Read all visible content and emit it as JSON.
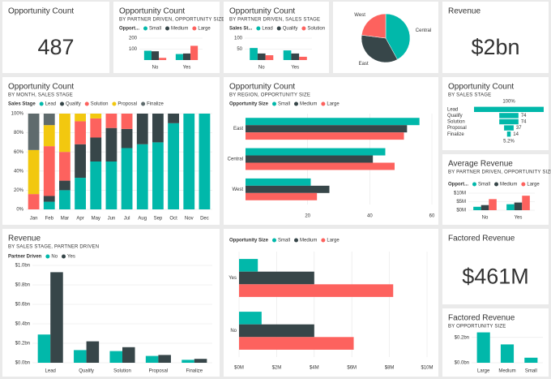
{
  "chart_data": [
    {
      "type": "card",
      "title": "Opportunity Count",
      "value": 487
    },
    {
      "type": "bar",
      "title": "Opportunity Count",
      "subtitle": "BY PARTNER DRIVEN, OPPORTUNITY SIZE",
      "legend_title": "Opport...",
      "categories": [
        "No",
        "Yes"
      ],
      "series": [
        {
          "name": "Small",
          "color": "#01b8aa",
          "values": [
            85,
            55
          ]
        },
        {
          "name": "Medium",
          "color": "#374649",
          "values": [
            80,
            60
          ]
        },
        {
          "name": "Large",
          "color": "#fd625e",
          "values": [
            20,
            130
          ]
        }
      ],
      "ylim": [
        0,
        200
      ],
      "yticks": [
        100,
        200
      ],
      "grid": true
    },
    {
      "type": "bar",
      "title": "Opportunity Count",
      "subtitle": "BY PARTNER DRIVEN, SALES STAGE",
      "legend_title": "Sales St...",
      "categories": [
        "No",
        "Yes"
      ],
      "series": [
        {
          "name": "Lead",
          "color": "#01b8aa",
          "values": [
            55,
            44
          ]
        },
        {
          "name": "Qualify",
          "color": "#374649",
          "values": [
            30,
            30
          ]
        },
        {
          "name": "Solution",
          "color": "#fd625e",
          "values": [
            22,
            15
          ]
        }
      ],
      "ylim": [
        0,
        100
      ],
      "yticks": [
        50,
        100
      ],
      "grid": true
    },
    {
      "type": "pie",
      "categories": [
        "Central",
        "East",
        "West"
      ],
      "values": [
        42,
        35,
        23
      ],
      "colors": [
        "#01b8aa",
        "#374649",
        "#fd625e"
      ]
    },
    {
      "type": "card",
      "title": "Revenue",
      "value": 2000000000,
      "value_label": "$2bn"
    },
    {
      "type": "stacked_bar",
      "title": "Opportunity Count",
      "subtitle": "BY MONTH, SALES STAGE",
      "legend_title": "Sales Stage",
      "categories": [
        "Jan",
        "Feb",
        "Mar",
        "Apr",
        "May",
        "Jun",
        "Jul",
        "Aug",
        "Sep",
        "Oct",
        "Nov",
        "Dec"
      ],
      "series": [
        {
          "name": "Lead",
          "color": "#01b8aa",
          "values": [
            0,
            8,
            20,
            33,
            50,
            50,
            64,
            68,
            70,
            90,
            100,
            100
          ]
        },
        {
          "name": "Qualify",
          "color": "#374649",
          "values": [
            0,
            6,
            10,
            35,
            25,
            35,
            20,
            32,
            30,
            10,
            0,
            0
          ]
        },
        {
          "name": "Solution",
          "color": "#fd625e",
          "values": [
            16,
            52,
            30,
            24,
            20,
            15,
            16,
            0,
            0,
            0,
            0,
            0
          ]
        },
        {
          "name": "Proposal",
          "color": "#f2c80f",
          "values": [
            46,
            22,
            40,
            8,
            5,
            0,
            0,
            0,
            0,
            0,
            0,
            0
          ]
        },
        {
          "name": "Finalize",
          "color": "#5f6b6d",
          "values": [
            38,
            12,
            0,
            0,
            0,
            0,
            0,
            0,
            0,
            0,
            0,
            0
          ]
        }
      ],
      "ylim": [
        0,
        100
      ],
      "yticks": [
        {
          "value": 0,
          "label": "0%"
        },
        {
          "value": 20,
          "label": "20%"
        },
        {
          "value": 40,
          "label": "40%"
        },
        {
          "value": 60,
          "label": "60%"
        },
        {
          "value": 80,
          "label": "80%"
        },
        {
          "value": 100,
          "label": "100%"
        }
      ],
      "grid": true
    },
    {
      "type": "hbar",
      "title": "Opportunity Count",
      "subtitle": "BY REGION, OPPORTUNITY SIZE",
      "legend_title": "Opportunity Size",
      "categories": [
        "East",
        "Central",
        "West"
      ],
      "series": [
        {
          "name": "Small",
          "color": "#01b8aa",
          "values": [
            56,
            45,
            21
          ]
        },
        {
          "name": "Medium",
          "color": "#374649",
          "values": [
            52,
            41,
            27
          ]
        },
        {
          "name": "Large",
          "color": "#fd625e",
          "values": [
            51,
            48,
            23
          ]
        }
      ],
      "xlim": [
        0,
        60
      ],
      "xticks": [
        20,
        40,
        60
      ],
      "grid": true
    },
    {
      "type": "funnel",
      "title": "Opportunity Count",
      "subtitle": "BY SALES STAGE",
      "color": "#01b8aa",
      "categories": [
        "Lead",
        "Qualify",
        "Solution",
        "Proposal",
        "Finalize"
      ],
      "values": [
        269,
        74,
        74,
        37,
        14
      ],
      "value_labels": [
        null,
        "74",
        "74",
        "37",
        "14"
      ],
      "annotations": [
        "100%",
        "5.2%"
      ]
    },
    {
      "type": "bar",
      "title": "Average Revenue",
      "subtitle": "BY PARTNER DRIVEN, OPPORTUNITY SIZE",
      "legend_title": "Opport...",
      "categories": [
        "No",
        "Yes"
      ],
      "series": [
        {
          "name": "Small",
          "color": "#01b8aa",
          "values": [
            2,
            3.5
          ]
        },
        {
          "name": "Medium",
          "color": "#374649",
          "values": [
            3,
            4.5
          ]
        },
        {
          "name": "Large",
          "color": "#fd625e",
          "values": [
            6.5,
            8.5
          ]
        }
      ],
      "ylim": [
        0,
        10
      ],
      "yticks": [
        {
          "value": 0,
          "label": "$0M"
        },
        {
          "value": 5,
          "label": "$5M"
        },
        {
          "value": 10,
          "label": "$10M"
        }
      ],
      "grid": true
    },
    {
      "type": "bar",
      "title": "Revenue",
      "subtitle": "BY SALES STAGE, PARTNER DRIVEN",
      "legend_title": "Partner Driven",
      "categories": [
        "Lead",
        "Qualify",
        "Solution",
        "Proposal",
        "Finalize"
      ],
      "series": [
        {
          "name": "No",
          "color": "#01b8aa",
          "values": [
            0.29,
            0.13,
            0.12,
            0.07,
            0.03
          ]
        },
        {
          "name": "Yes",
          "color": "#374649",
          "values": [
            0.93,
            0.22,
            0.16,
            0.08,
            0.04
          ]
        }
      ],
      "ylim": [
        0,
        1
      ],
      "yticks": [
        {
          "value": 0,
          "label": "$0.0bn"
        },
        {
          "value": 0.2,
          "label": "$0.2bn"
        },
        {
          "value": 0.4,
          "label": "$0.4bn"
        },
        {
          "value": 0.6,
          "label": "$0.6bn"
        },
        {
          "value": 0.8,
          "label": "$0.8bn"
        },
        {
          "value": 1,
          "label": "$1.0bn"
        }
      ],
      "grid": true
    },
    {
      "type": "hbar",
      "legend_title": "Opportunity Size",
      "categories": [
        "Yes",
        "No"
      ],
      "series": [
        {
          "name": "Small",
          "color": "#01b8aa",
          "values": [
            1.0,
            1.2
          ]
        },
        {
          "name": "Medium",
          "color": "#374649",
          "values": [
            4.0,
            4.0
          ]
        },
        {
          "name": "Large",
          "color": "#fd625e",
          "values": [
            8.2,
            6.1
          ]
        }
      ],
      "xlim": [
        0,
        10
      ],
      "xticks": [
        {
          "value": 0,
          "label": "$0M"
        },
        {
          "value": 2,
          "label": "$2M"
        },
        {
          "value": 4,
          "label": "$4M"
        },
        {
          "value": 6,
          "label": "$6M"
        },
        {
          "value": 8,
          "label": "$8M"
        },
        {
          "value": 10,
          "label": "$10M"
        }
      ],
      "grid": true
    },
    {
      "type": "card",
      "title": "Factored Revenue",
      "value": 461000000,
      "value_label": "$461M"
    },
    {
      "type": "bar",
      "title": "Factored Revenue",
      "subtitle": "BY OPPORTUNITY SIZE",
      "color": "#01b8aa",
      "categories": [
        "Large",
        "Medium",
        "Small"
      ],
      "values": [
        0.24,
        0.145,
        0.04
      ],
      "ylim": [
        0,
        0.25
      ],
      "yticks": [
        {
          "value": 0,
          "label": "$0.0bn"
        },
        {
          "value": 0.2,
          "label": "$0.2bn"
        }
      ],
      "grid": true
    }
  ]
}
